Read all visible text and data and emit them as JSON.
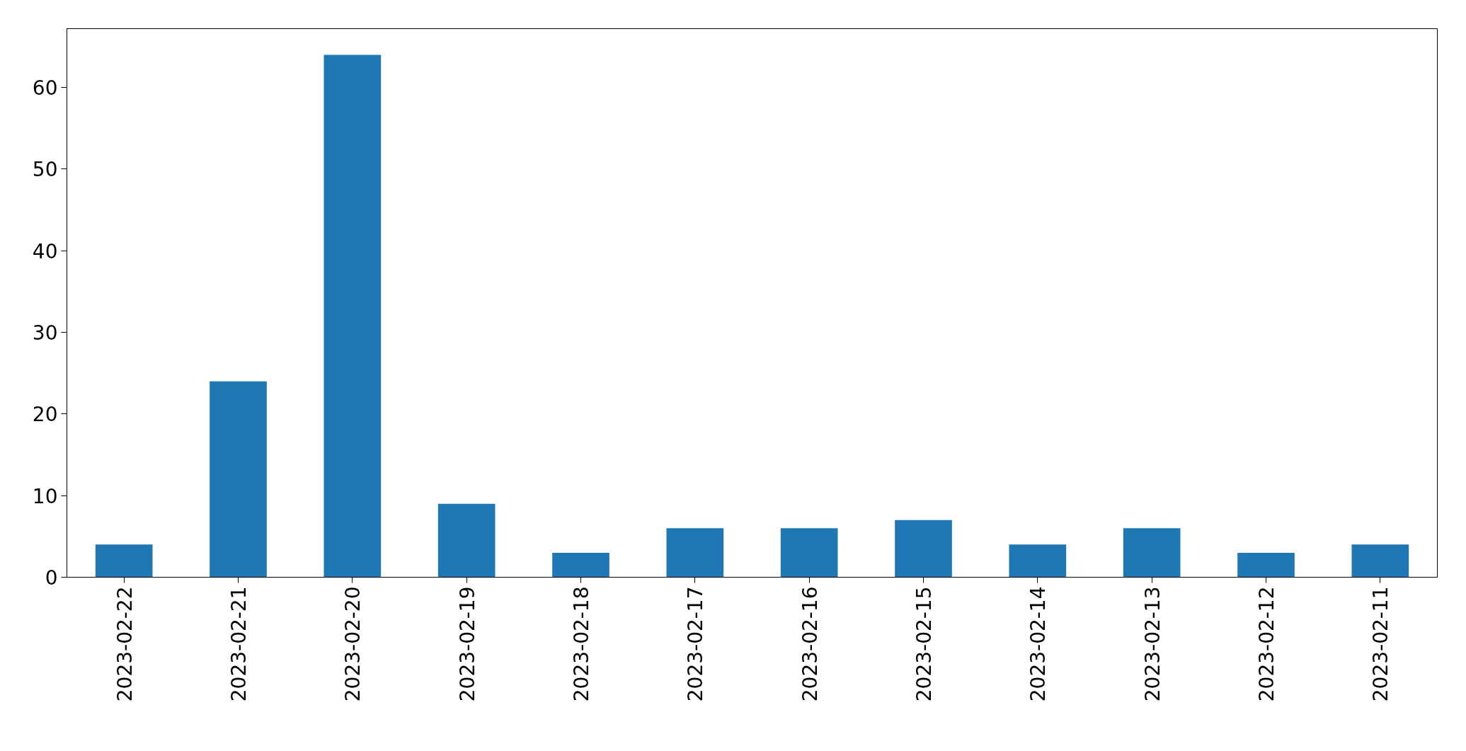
{
  "chart_data": {
    "type": "bar",
    "categories": [
      "2023-02-22",
      "2023-02-21",
      "2023-02-20",
      "2023-02-19",
      "2023-02-18",
      "2023-02-17",
      "2023-02-16",
      "2023-02-15",
      "2023-02-14",
      "2023-02-13",
      "2023-02-12",
      "2023-02-11"
    ],
    "values": [
      4,
      24,
      64,
      9,
      3,
      6,
      6,
      7,
      4,
      6,
      3,
      4
    ],
    "color": "#1f77b4",
    "ylim": [
      0,
      67.2
    ],
    "yticks": [
      0,
      10,
      20,
      30,
      40,
      50,
      60
    ]
  }
}
